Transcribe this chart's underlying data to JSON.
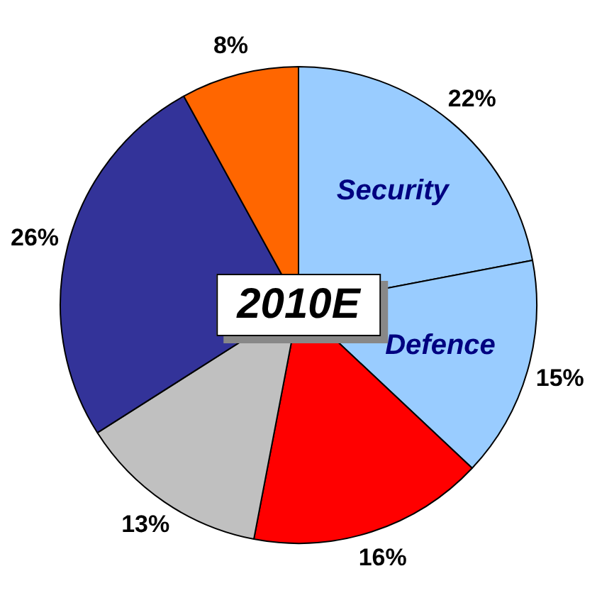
{
  "chart_data": {
    "type": "pie",
    "title": "2010E",
    "categories": [
      "Security",
      "Defence",
      null,
      null,
      null,
      null
    ],
    "values": [
      22,
      15,
      16,
      13,
      26,
      8
    ],
    "value_labels": [
      "22%",
      "15%",
      "16%",
      "13%",
      "26%",
      "8%"
    ],
    "colors": [
      "#99ccff",
      "#99ccff",
      "#ff0000",
      "#c0c0c0",
      "#333399",
      "#ff6600"
    ],
    "legend": false
  }
}
